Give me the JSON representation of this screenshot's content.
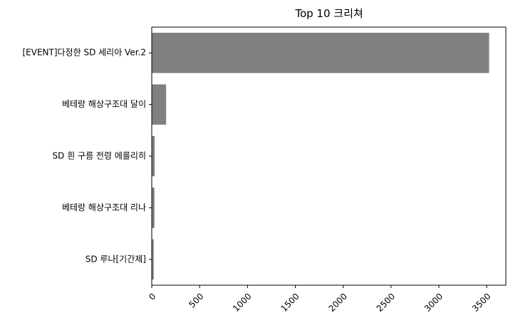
{
  "chart_data": {
    "type": "bar",
    "orientation": "horizontal",
    "title": "Top 10 크리쳐",
    "xlabel": "",
    "ylabel": "",
    "categories": [
      "[EVENT]다정한 SD 세리아 Ver.2",
      "베테랑 해상구조대 달이",
      "SD 흰 구름 전령 에를리히",
      "베테랑 해상구조대 리나",
      "SD 루나[기간제]"
    ],
    "values": [
      3525,
      150,
      30,
      28,
      20
    ],
    "xlim": [
      0,
      3700
    ],
    "xticks": [
      0,
      500,
      1000,
      1500,
      2000,
      2500,
      3000,
      3500
    ],
    "grid": false,
    "legend": "none",
    "bar_color": "#808080"
  }
}
